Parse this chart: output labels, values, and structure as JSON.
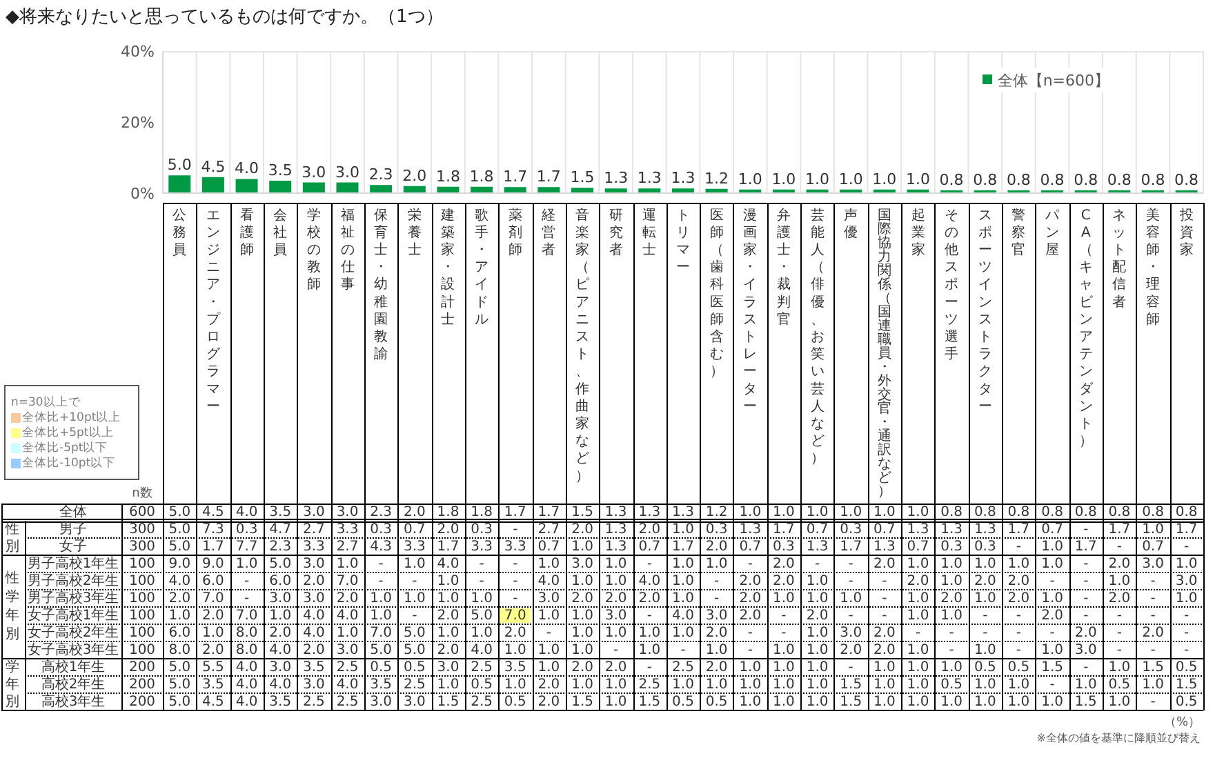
{
  "chart_data": [
    {
      "type": "bar",
      "title": "◆将来なりたいと思っているものは何ですか。（1つ）",
      "categories": [
        "公務員",
        "エンジニア・プログラマー",
        "看護師",
        "会社員",
        "学校の教師",
        "福祉の仕事",
        "保育士・幼稚園教諭",
        "栄養士",
        "建築家・設計士",
        "歌手・アイドル",
        "薬剤師",
        "経営者",
        "音楽家（ピアニスト、作曲家など）",
        "研究者",
        "運転士",
        "トリマー",
        "医師（歯科医師含む）",
        "漫画家・イラストレーター",
        "弁護士・裁判官",
        "芸能人（俳優、お笑い芸人など）",
        "声優",
        "国際協力関係（国連職員・外交官・通訳など）",
        "起業家",
        "その他スポーツ選手",
        "スポーツインストラクター",
        "警察官",
        "パン屋",
        "CA（キャビンアテンダント）",
        "ネット配信者",
        "美容師・理容師",
        "投資家"
      ],
      "series": [
        {
          "name": "全体【n=600】",
          "color": "#009a44",
          "values": [
            5.0,
            4.5,
            4.0,
            3.5,
            3.0,
            3.0,
            2.3,
            2.0,
            1.8,
            1.8,
            1.7,
            1.7,
            1.5,
            1.3,
            1.3,
            1.3,
            1.2,
            1.0,
            1.0,
            1.0,
            1.0,
            1.0,
            1.0,
            0.8,
            0.8,
            0.8,
            0.8,
            0.8,
            0.8,
            0.8,
            0.8
          ],
          "value_labels": [
            "5.0",
            "4.5",
            "4.0",
            "3.5",
            "3.0",
            "3.0",
            "2.3",
            "2.0",
            "1.8",
            "1.8",
            "1.7",
            "1.7",
            "1.5",
            "1.3",
            "1.3",
            "1.3",
            "1.2",
            "1.0",
            "1.0",
            "1.0",
            "1.0",
            "1.0",
            "1.0",
            "0.8",
            "0.8",
            "0.8",
            "0.8",
            "0.8",
            "0.8",
            "0.8",
            "0.8"
          ]
        }
      ],
      "ylim": [
        0,
        40
      ],
      "yticks": [
        {
          "value": 0,
          "label": "0%"
        },
        {
          "value": 20,
          "label": "20%"
        },
        {
          "value": 40,
          "label": "40%"
        }
      ],
      "grid": "x",
      "legend": "top right"
    },
    {
      "type": "heatmap",
      "categories": [
        "公務員",
        "エンジニア・プログラマー",
        "看護師",
        "会社員",
        "学校の教師",
        "福祉の仕事",
        "保育士・幼稚園教諭",
        "栄養士",
        "建築家・設計士",
        "歌手・アイドル",
        "薬剤師",
        "経営者",
        "音楽家（ピアニスト、作曲家など）",
        "研究者",
        "運転士",
        "トリマー",
        "医師（歯科医師含む）",
        "漫画家・イラストレーター",
        "弁護士・裁判官",
        "芸能人（俳優、お笑い芸人など）",
        "声優",
        "国際協力関係（国連職員・外交官・通訳など）",
        "起業家",
        "その他スポーツ選手",
        "スポーツインストラクター",
        "警察官",
        "パン屋",
        "CA（キャビンアテンダント）",
        "ネット配信者",
        "美容師・理容師",
        "投資家"
      ],
      "y_categories": [
        "全体",
        "男子",
        "女子",
        "男子高校1年生",
        "男子高校2年生",
        "男子高校3年生",
        "女子高校1年生",
        "女子高校2年生",
        "女子高校3年生",
        "高校1年生",
        "高校2年生",
        "高校3年生"
      ],
      "y2_categories": [
        "600",
        "300",
        "300",
        "100",
        "100",
        "100",
        "100",
        "100",
        "100",
        "200",
        "200",
        "200"
      ],
      "y2label": "n数",
      "cells": [
        [
          5.0,
          4.5,
          4.0,
          3.5,
          3.0,
          3.0,
          2.3,
          2.0,
          1.8,
          1.8,
          1.7,
          1.7,
          1.5,
          1.3,
          1.3,
          1.3,
          1.2,
          1.0,
          1.0,
          1.0,
          1.0,
          1.0,
          1.0,
          0.8,
          0.8,
          0.8,
          0.8,
          0.8,
          0.8,
          0.8,
          0.8
        ],
        [
          5.0,
          7.3,
          0.3,
          4.7,
          2.7,
          3.3,
          0.3,
          0.7,
          2.0,
          0.3,
          null,
          2.7,
          2.0,
          1.3,
          2.0,
          1.0,
          0.3,
          1.3,
          1.7,
          0.7,
          0.3,
          0.7,
          1.3,
          1.3,
          1.3,
          1.7,
          0.7,
          null,
          1.7,
          1.0,
          1.7
        ],
        [
          5.0,
          1.7,
          7.7,
          2.3,
          3.3,
          2.7,
          4.3,
          3.3,
          1.7,
          3.3,
          3.3,
          0.7,
          1.0,
          1.3,
          0.7,
          1.7,
          2.0,
          0.7,
          0.3,
          1.3,
          1.7,
          1.3,
          0.7,
          0.3,
          0.3,
          null,
          1.0,
          1.7,
          null,
          0.7,
          null
        ],
        [
          9.0,
          9.0,
          1.0,
          5.0,
          3.0,
          1.0,
          null,
          1.0,
          4.0,
          null,
          null,
          1.0,
          3.0,
          1.0,
          null,
          1.0,
          1.0,
          null,
          2.0,
          null,
          null,
          2.0,
          1.0,
          1.0,
          1.0,
          1.0,
          1.0,
          null,
          2.0,
          3.0,
          1.0
        ],
        [
          4.0,
          6.0,
          null,
          6.0,
          2.0,
          7.0,
          null,
          null,
          1.0,
          null,
          null,
          4.0,
          1.0,
          1.0,
          4.0,
          1.0,
          null,
          2.0,
          2.0,
          1.0,
          null,
          null,
          2.0,
          1.0,
          2.0,
          2.0,
          null,
          null,
          1.0,
          null,
          3.0
        ],
        [
          2.0,
          7.0,
          null,
          3.0,
          3.0,
          2.0,
          1.0,
          1.0,
          1.0,
          1.0,
          null,
          3.0,
          2.0,
          2.0,
          2.0,
          1.0,
          null,
          2.0,
          1.0,
          1.0,
          1.0,
          null,
          1.0,
          2.0,
          1.0,
          2.0,
          1.0,
          null,
          2.0,
          null,
          1.0
        ],
        [
          1.0,
          2.0,
          7.0,
          1.0,
          4.0,
          4.0,
          1.0,
          null,
          2.0,
          5.0,
          7.0,
          1.0,
          1.0,
          3.0,
          null,
          4.0,
          3.0,
          2.0,
          null,
          2.0,
          null,
          null,
          1.0,
          1.0,
          null,
          null,
          2.0,
          null,
          null,
          null,
          null
        ],
        [
          6.0,
          1.0,
          8.0,
          2.0,
          4.0,
          1.0,
          7.0,
          5.0,
          1.0,
          1.0,
          2.0,
          null,
          1.0,
          1.0,
          1.0,
          1.0,
          2.0,
          null,
          null,
          1.0,
          3.0,
          2.0,
          null,
          null,
          null,
          null,
          null,
          2.0,
          null,
          2.0,
          null
        ],
        [
          8.0,
          2.0,
          8.0,
          4.0,
          2.0,
          3.0,
          5.0,
          5.0,
          2.0,
          4.0,
          1.0,
          1.0,
          1.0,
          null,
          1.0,
          null,
          1.0,
          null,
          1.0,
          1.0,
          2.0,
          2.0,
          1.0,
          null,
          1.0,
          null,
          1.0,
          3.0,
          null,
          null,
          null
        ],
        [
          5.0,
          5.5,
          4.0,
          3.0,
          3.5,
          2.5,
          0.5,
          0.5,
          3.0,
          2.5,
          3.5,
          1.0,
          2.0,
          2.0,
          null,
          2.5,
          2.0,
          1.0,
          1.0,
          1.0,
          null,
          1.0,
          1.0,
          1.0,
          0.5,
          0.5,
          1.5,
          null,
          1.0,
          1.5,
          0.5
        ],
        [
          5.0,
          3.5,
          4.0,
          4.0,
          3.0,
          4.0,
          3.5,
          2.5,
          1.0,
          0.5,
          1.0,
          2.0,
          1.0,
          1.0,
          2.5,
          1.0,
          1.0,
          1.0,
          1.0,
          1.0,
          1.5,
          1.0,
          1.0,
          0.5,
          1.0,
          1.0,
          null,
          1.0,
          0.5,
          1.0,
          1.5
        ],
        [
          5.0,
          4.5,
          4.0,
          3.5,
          2.5,
          2.5,
          3.0,
          3.0,
          1.5,
          2.5,
          0.5,
          2.0,
          1.5,
          1.0,
          1.5,
          0.5,
          0.5,
          1.0,
          1.0,
          1.0,
          1.5,
          1.0,
          1.0,
          1.0,
          1.0,
          1.0,
          1.0,
          1.5,
          1.0,
          null,
          0.5
        ]
      ],
      "cell_labels": [
        [
          "5.0",
          "4.5",
          "4.0",
          "3.5",
          "3.0",
          "3.0",
          "2.3",
          "2.0",
          "1.8",
          "1.8",
          "1.7",
          "1.7",
          "1.5",
          "1.3",
          "1.3",
          "1.3",
          "1.2",
          "1.0",
          "1.0",
          "1.0",
          "1.0",
          "1.0",
          "1.0",
          "0.8",
          "0.8",
          "0.8",
          "0.8",
          "0.8",
          "0.8",
          "0.8",
          "0.8"
        ],
        [
          "5.0",
          "7.3",
          "0.3",
          "4.7",
          "2.7",
          "3.3",
          "0.3",
          "0.7",
          "2.0",
          "0.3",
          "-",
          "2.7",
          "2.0",
          "1.3",
          "2.0",
          "1.0",
          "0.3",
          "1.3",
          "1.7",
          "0.7",
          "0.3",
          "0.7",
          "1.3",
          "1.3",
          "1.3",
          "1.7",
          "0.7",
          "-",
          "1.7",
          "1.0",
          "1.7"
        ],
        [
          "5.0",
          "1.7",
          "7.7",
          "2.3",
          "3.3",
          "2.7",
          "4.3",
          "3.3",
          "1.7",
          "3.3",
          "3.3",
          "0.7",
          "1.0",
          "1.3",
          "0.7",
          "1.7",
          "2.0",
          "0.7",
          "0.3",
          "1.3",
          "1.7",
          "1.3",
          "0.7",
          "0.3",
          "0.3",
          "-",
          "1.0",
          "1.7",
          "-",
          "0.7",
          "-"
        ],
        [
          "9.0",
          "9.0",
          "1.0",
          "5.0",
          "3.0",
          "1.0",
          "-",
          "1.0",
          "4.0",
          "-",
          "-",
          "1.0",
          "3.0",
          "1.0",
          "-",
          "1.0",
          "1.0",
          "-",
          "2.0",
          "-",
          "-",
          "2.0",
          "1.0",
          "1.0",
          "1.0",
          "1.0",
          "1.0",
          "-",
          "2.0",
          "3.0",
          "1.0"
        ],
        [
          "4.0",
          "6.0",
          "-",
          "6.0",
          "2.0",
          "7.0",
          "-",
          "-",
          "1.0",
          "-",
          "-",
          "4.0",
          "1.0",
          "1.0",
          "4.0",
          "1.0",
          "-",
          "2.0",
          "2.0",
          "1.0",
          "-",
          "-",
          "2.0",
          "1.0",
          "2.0",
          "2.0",
          "-",
          "-",
          "1.0",
          "-",
          "3.0"
        ],
        [
          "2.0",
          "7.0",
          "-",
          "3.0",
          "3.0",
          "2.0",
          "1.0",
          "1.0",
          "1.0",
          "1.0",
          "-",
          "3.0",
          "2.0",
          "2.0",
          "2.0",
          "1.0",
          "-",
          "2.0",
          "1.0",
          "1.0",
          "1.0",
          "-",
          "1.0",
          "2.0",
          "1.0",
          "2.0",
          "1.0",
          "-",
          "2.0",
          "-",
          "1.0"
        ],
        [
          "1.0",
          "2.0",
          "7.0",
          "1.0",
          "4.0",
          "4.0",
          "1.0",
          "-",
          "2.0",
          "5.0",
          "7.0",
          "1.0",
          "1.0",
          "3.0",
          "-",
          "4.0",
          "3.0",
          "2.0",
          "-",
          "2.0",
          "-",
          "-",
          "1.0",
          "1.0",
          "-",
          "-",
          "2.0",
          "-",
          "-",
          "-",
          "-"
        ],
        [
          "6.0",
          "1.0",
          "8.0",
          "2.0",
          "4.0",
          "1.0",
          "7.0",
          "5.0",
          "1.0",
          "1.0",
          "2.0",
          "-",
          "1.0",
          "1.0",
          "1.0",
          "1.0",
          "2.0",
          "-",
          "-",
          "1.0",
          "3.0",
          "2.0",
          "-",
          "-",
          "-",
          "-",
          "-",
          "2.0",
          "-",
          "2.0",
          "-"
        ],
        [
          "8.0",
          "2.0",
          "8.0",
          "4.0",
          "2.0",
          "3.0",
          "5.0",
          "5.0",
          "2.0",
          "4.0",
          "1.0",
          "1.0",
          "1.0",
          "-",
          "1.0",
          "-",
          "1.0",
          "-",
          "1.0",
          "1.0",
          "2.0",
          "2.0",
          "1.0",
          "-",
          "1.0",
          "-",
          "1.0",
          "3.0",
          "-",
          "-",
          "-"
        ],
        [
          "5.0",
          "5.5",
          "4.0",
          "3.0",
          "3.5",
          "2.5",
          "0.5",
          "0.5",
          "3.0",
          "2.5",
          "3.5",
          "1.0",
          "2.0",
          "2.0",
          "-",
          "2.5",
          "2.0",
          "1.0",
          "1.0",
          "1.0",
          "-",
          "1.0",
          "1.0",
          "1.0",
          "0.5",
          "0.5",
          "1.5",
          "-",
          "1.0",
          "1.5",
          "0.5"
        ],
        [
          "5.0",
          "3.5",
          "4.0",
          "4.0",
          "3.0",
          "4.0",
          "3.5",
          "2.5",
          "1.0",
          "0.5",
          "1.0",
          "2.0",
          "1.0",
          "1.0",
          "2.5",
          "1.0",
          "1.0",
          "1.0",
          "1.0",
          "1.0",
          "1.5",
          "1.0",
          "1.0",
          "0.5",
          "1.0",
          "1.0",
          "-",
          "1.0",
          "0.5",
          "1.0",
          "1.5"
        ],
        [
          "5.0",
          "4.5",
          "4.0",
          "3.5",
          "2.5",
          "2.5",
          "3.0",
          "3.0",
          "1.5",
          "2.5",
          "0.5",
          "2.0",
          "1.5",
          "1.0",
          "1.5",
          "0.5",
          "0.5",
          "1.0",
          "1.0",
          "1.0",
          "1.5",
          "1.0",
          "1.0",
          "1.0",
          "1.0",
          "1.0",
          "1.0",
          "1.5",
          "1.0",
          "-",
          "0.5"
        ]
      ],
      "tick_labels": "y",
      "legend_title": "n=30以上で",
      "annotations": [
        "全体比+10pt以上",
        "全体比+5pt以上",
        "全体比-5pt以下",
        "全体比-10pt以下",
        "性別",
        "性学年別",
        "学年別",
        "（%）",
        "※全体の値を基準に降順並び替え"
      ]
    }
  ]
}
